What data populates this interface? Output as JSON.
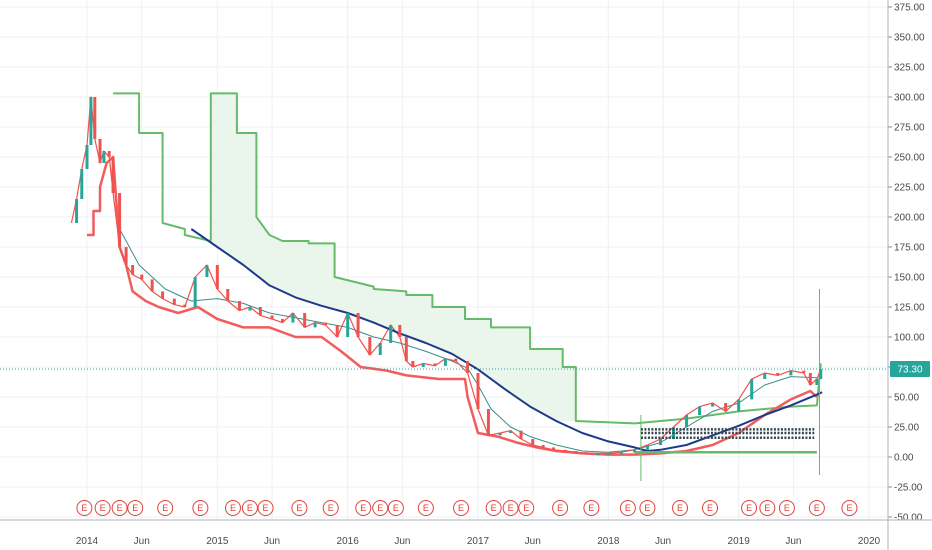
{
  "chart_data": {
    "type": "candlestick",
    "title": "",
    "ylim": [
      -50,
      375
    ],
    "xlim": [
      2013.85,
      2020.1
    ],
    "y_ticks": [
      375,
      350,
      325,
      300,
      275,
      250,
      225,
      200,
      175,
      150,
      125,
      100,
      75,
      50,
      25,
      0,
      -25,
      -50
    ],
    "y_tick_labels": [
      "375.00",
      "350.00",
      "325.00",
      "300.00",
      "275.00",
      "250.00",
      "225.00",
      "200.00",
      "175.00",
      "150.00",
      "125.00",
      "100.00",
      "75.00",
      "50.00",
      "25.00",
      "0.00",
      "-25.00",
      "-50.00"
    ],
    "x_ticks": [
      {
        "label": "2014",
        "x": 2014.0
      },
      {
        "label": "Jun",
        "x": 2014.42
      },
      {
        "label": "2015",
        "x": 2015.0
      },
      {
        "label": "Jun",
        "x": 2015.42
      },
      {
        "label": "2016",
        "x": 2016.0
      },
      {
        "label": "Jun",
        "x": 2016.42
      },
      {
        "label": "2017",
        "x": 2017.0
      },
      {
        "label": "Jun",
        "x": 2017.42
      },
      {
        "label": "2018",
        "x": 2018.0
      },
      {
        "label": "Jun",
        "x": 2018.42
      },
      {
        "label": "2019",
        "x": 2019.0
      },
      {
        "label": "Jun",
        "x": 2019.42
      },
      {
        "label": "2020",
        "x": 2020.0
      }
    ],
    "grid": true,
    "last_price": 73.3,
    "last_price_label": "73.30",
    "colors": {
      "up": "#26a69a",
      "down": "#ef5350",
      "green_line": "#66bb6a",
      "green_fill": "#e8f5e9",
      "red_line": "#f15c5c",
      "blue_ma": "#1e3a8a",
      "teal_ma": "#3a8d8d",
      "last_price": "#26a69a",
      "earnings": "#e0403a",
      "grid": "#eef0f3"
    },
    "series": [
      {
        "name": "",
        "kind": "price",
        "points": [
          [
            2013.88,
            195
          ],
          [
            2013.92,
            215
          ],
          [
            2013.96,
            240
          ],
          [
            2014.0,
            260
          ],
          [
            2014.03,
            300
          ],
          [
            2014.06,
            265
          ],
          [
            2014.1,
            245
          ],
          [
            2014.13,
            255
          ],
          [
            2014.17,
            250
          ],
          [
            2014.2,
            220
          ],
          [
            2014.25,
            175
          ],
          [
            2014.3,
            160
          ],
          [
            2014.35,
            152
          ],
          [
            2014.42,
            148
          ],
          [
            2014.5,
            138
          ],
          [
            2014.58,
            132
          ],
          [
            2014.67,
            127
          ],
          [
            2014.75,
            125
          ],
          [
            2014.83,
            150
          ],
          [
            2014.92,
            160
          ],
          [
            2015.0,
            140
          ],
          [
            2015.08,
            130
          ],
          [
            2015.17,
            122
          ],
          [
            2015.25,
            125
          ],
          [
            2015.33,
            118
          ],
          [
            2015.42,
            115
          ],
          [
            2015.5,
            112
          ],
          [
            2015.58,
            120
          ],
          [
            2015.67,
            108
          ],
          [
            2015.75,
            112
          ],
          [
            2015.83,
            110
          ],
          [
            2015.92,
            100
          ],
          [
            2016.0,
            120
          ],
          [
            2016.08,
            100
          ],
          [
            2016.17,
            85
          ],
          [
            2016.25,
            95
          ],
          [
            2016.33,
            110
          ],
          [
            2016.4,
            100
          ],
          [
            2016.45,
            80
          ],
          [
            2016.5,
            75
          ],
          [
            2016.58,
            78
          ],
          [
            2016.67,
            76
          ],
          [
            2016.75,
            82
          ],
          [
            2016.83,
            80
          ],
          [
            2016.92,
            70
          ],
          [
            2017.0,
            40
          ],
          [
            2017.08,
            18
          ],
          [
            2017.17,
            20
          ],
          [
            2017.25,
            22
          ],
          [
            2017.33,
            15
          ],
          [
            2017.42,
            10
          ],
          [
            2017.5,
            8
          ],
          [
            2017.58,
            6
          ],
          [
            2017.67,
            5
          ],
          [
            2017.75,
            4
          ],
          [
            2017.83,
            3
          ],
          [
            2017.92,
            3
          ],
          [
            2018.0,
            3
          ],
          [
            2018.1,
            4
          ],
          [
            2018.2,
            6
          ],
          [
            2018.3,
            10
          ],
          [
            2018.4,
            15
          ],
          [
            2018.5,
            25
          ],
          [
            2018.6,
            35
          ],
          [
            2018.7,
            42
          ],
          [
            2018.8,
            45
          ],
          [
            2018.9,
            38
          ],
          [
            2019.0,
            48
          ],
          [
            2019.1,
            65
          ],
          [
            2019.2,
            70
          ],
          [
            2019.3,
            68
          ],
          [
            2019.4,
            72
          ],
          [
            2019.5,
            70
          ],
          [
            2019.55,
            60
          ],
          [
            2019.6,
            65
          ],
          [
            2019.63,
            73.3
          ]
        ]
      },
      {
        "name": "",
        "kind": "ma_fast",
        "points": [
          [
            2014.25,
            190
          ],
          [
            2014.4,
            160
          ],
          [
            2014.6,
            140
          ],
          [
            2014.8,
            130
          ],
          [
            2015.0,
            132
          ],
          [
            2015.2,
            128
          ],
          [
            2015.4,
            120
          ],
          [
            2015.6,
            116
          ],
          [
            2015.8,
            112
          ],
          [
            2016.0,
            108
          ],
          [
            2016.2,
            100
          ],
          [
            2016.4,
            95
          ],
          [
            2016.6,
            88
          ],
          [
            2016.8,
            80
          ],
          [
            2016.92,
            74
          ],
          [
            2017.0,
            60
          ],
          [
            2017.1,
            40
          ],
          [
            2017.25,
            25
          ],
          [
            2017.4,
            17
          ],
          [
            2017.6,
            10
          ],
          [
            2017.8,
            5
          ],
          [
            2018.0,
            4
          ],
          [
            2018.2,
            6
          ],
          [
            2018.4,
            12
          ],
          [
            2018.6,
            25
          ],
          [
            2018.8,
            38
          ],
          [
            2019.0,
            45
          ],
          [
            2019.2,
            60
          ],
          [
            2019.4,
            67
          ],
          [
            2019.6,
            66
          ]
        ]
      },
      {
        "name": "",
        "kind": "ma_slow",
        "points": [
          [
            2014.8,
            190
          ],
          [
            2015.0,
            175
          ],
          [
            2015.2,
            160
          ],
          [
            2015.4,
            143
          ],
          [
            2015.6,
            133
          ],
          [
            2015.8,
            126
          ],
          [
            2016.0,
            120
          ],
          [
            2016.2,
            112
          ],
          [
            2016.4,
            103
          ],
          [
            2016.6,
            95
          ],
          [
            2016.8,
            86
          ],
          [
            2017.0,
            73
          ],
          [
            2017.2,
            57
          ],
          [
            2017.4,
            42
          ],
          [
            2017.6,
            30
          ],
          [
            2017.8,
            20
          ],
          [
            2018.0,
            13
          ],
          [
            2018.2,
            8
          ],
          [
            2018.3,
            5
          ],
          [
            2018.4,
            6
          ],
          [
            2018.6,
            10
          ],
          [
            2018.8,
            18
          ],
          [
            2019.0,
            26
          ],
          [
            2019.2,
            35
          ],
          [
            2019.4,
            43
          ],
          [
            2019.6,
            52
          ],
          [
            2019.64,
            54
          ]
        ]
      },
      {
        "name": "",
        "kind": "green_step",
        "points": [
          [
            2014.2,
            303
          ],
          [
            2014.4,
            303
          ],
          [
            2014.4,
            270
          ],
          [
            2014.58,
            270
          ],
          [
            2014.58,
            195
          ],
          [
            2014.75,
            190
          ],
          [
            2014.75,
            185
          ],
          [
            2014.95,
            180
          ],
          [
            2014.95,
            303
          ],
          [
            2015.15,
            303
          ],
          [
            2015.15,
            270
          ],
          [
            2015.3,
            270
          ],
          [
            2015.3,
            200
          ],
          [
            2015.4,
            185
          ],
          [
            2015.5,
            180
          ],
          [
            2015.7,
            180
          ],
          [
            2015.7,
            178
          ],
          [
            2015.9,
            178
          ],
          [
            2015.9,
            150
          ],
          [
            2016.2,
            142
          ],
          [
            2016.2,
            140
          ],
          [
            2016.45,
            138
          ],
          [
            2016.45,
            135
          ],
          [
            2016.65,
            135
          ],
          [
            2016.65,
            125
          ],
          [
            2016.9,
            125
          ],
          [
            2016.9,
            115
          ],
          [
            2017.1,
            115
          ],
          [
            2017.1,
            108
          ],
          [
            2017.4,
            108
          ],
          [
            2017.4,
            90
          ],
          [
            2017.65,
            90
          ],
          [
            2017.65,
            75
          ],
          [
            2017.75,
            75
          ],
          [
            2017.75,
            30
          ],
          [
            2018.2,
            28
          ],
          [
            2018.4,
            30
          ],
          [
            2018.6,
            32
          ],
          [
            2018.8,
            35
          ],
          [
            2019.0,
            38
          ],
          [
            2019.2,
            40
          ],
          [
            2019.4,
            42
          ],
          [
            2019.6,
            43
          ],
          [
            2019.63,
            78
          ]
        ]
      },
      {
        "name": "",
        "kind": "red_step",
        "points": [
          [
            2014.0,
            185
          ],
          [
            2014.05,
            185
          ],
          [
            2014.05,
            205
          ],
          [
            2014.1,
            205
          ],
          [
            2014.1,
            225
          ],
          [
            2014.15,
            245
          ],
          [
            2014.2,
            250
          ],
          [
            2014.25,
            175
          ],
          [
            2014.3,
            160
          ],
          [
            2014.35,
            138
          ],
          [
            2014.45,
            130
          ],
          [
            2014.55,
            125
          ],
          [
            2014.7,
            120
          ],
          [
            2014.85,
            125
          ],
          [
            2015.0,
            115
          ],
          [
            2015.2,
            108
          ],
          [
            2015.4,
            108
          ],
          [
            2015.6,
            100
          ],
          [
            2015.8,
            100
          ],
          [
            2015.95,
            88
          ],
          [
            2016.1,
            75
          ],
          [
            2016.3,
            72
          ],
          [
            2016.45,
            68
          ],
          [
            2016.7,
            65
          ],
          [
            2016.9,
            65
          ],
          [
            2016.92,
            50
          ],
          [
            2017.0,
            20
          ],
          [
            2017.15,
            17
          ],
          [
            2017.3,
            12
          ],
          [
            2017.45,
            8
          ],
          [
            2017.6,
            5
          ],
          [
            2017.8,
            3
          ],
          [
            2018.0,
            2
          ],
          [
            2018.2,
            2
          ],
          [
            2018.4,
            3
          ],
          [
            2018.6,
            5
          ],
          [
            2018.8,
            10
          ],
          [
            2019.0,
            20
          ],
          [
            2019.2,
            35
          ],
          [
            2019.4,
            48
          ],
          [
            2019.55,
            55
          ],
          [
            2019.6,
            50
          ]
        ]
      },
      {
        "name": "",
        "kind": "box_bottom",
        "points": [
          [
            2018.2,
            4
          ],
          [
            2019.6,
            4
          ]
        ]
      },
      {
        "name": "",
        "kind": "spike",
        "points": [
          [
            2018.25,
            -20
          ],
          [
            2018.25,
            35
          ]
        ]
      },
      {
        "name": "",
        "kind": "spike",
        "points": [
          [
            2019.62,
            -15
          ],
          [
            2019.62,
            140
          ]
        ]
      }
    ],
    "hlines": [
      {
        "y": 23,
        "x0": 2018.25,
        "x1": 2019.58
      },
      {
        "y": 20,
        "x0": 2018.25,
        "x1": 2019.58
      },
      {
        "y": 16,
        "x0": 2018.25,
        "x1": 2019.58
      }
    ],
    "earnings_markers": [
      {
        "label": "E",
        "x": 2013.98
      },
      {
        "label": "E",
        "x": 2014.12
      },
      {
        "label": "E",
        "x": 2014.25
      },
      {
        "label": "E",
        "x": 2014.37
      },
      {
        "label": "E",
        "x": 2014.6
      },
      {
        "label": "E",
        "x": 2014.87
      },
      {
        "label": "E",
        "x": 2015.12
      },
      {
        "label": "E",
        "x": 2015.25
      },
      {
        "label": "E",
        "x": 2015.37
      },
      {
        "label": "E",
        "x": 2015.63
      },
      {
        "label": "E",
        "x": 2015.87
      },
      {
        "label": "E",
        "x": 2016.12
      },
      {
        "label": "E",
        "x": 2016.25
      },
      {
        "label": "E",
        "x": 2016.37
      },
      {
        "label": "E",
        "x": 2016.6
      },
      {
        "label": "E",
        "x": 2016.87
      },
      {
        "label": "E",
        "x": 2017.12
      },
      {
        "label": "E",
        "x": 2017.25
      },
      {
        "label": "E",
        "x": 2017.37
      },
      {
        "label": "E",
        "x": 2017.63
      },
      {
        "label": "E",
        "x": 2017.87
      },
      {
        "label": "E",
        "x": 2018.15
      },
      {
        "label": "E",
        "x": 2018.3
      },
      {
        "label": "E",
        "x": 2018.55
      },
      {
        "label": "E",
        "x": 2018.78
      },
      {
        "label": "E",
        "x": 2019.08
      },
      {
        "label": "E",
        "x": 2019.22
      },
      {
        "label": "E",
        "x": 2019.37
      },
      {
        "label": "E",
        "x": 2019.6
      },
      {
        "label": "E",
        "x": 2019.85
      }
    ]
  }
}
